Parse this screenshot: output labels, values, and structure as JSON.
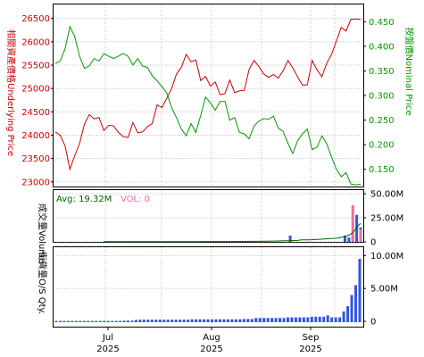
{
  "chart_data": [
    {
      "panel": "price",
      "type": "line",
      "y_left_label": "相關資產價格Underlying Price",
      "y_right_label": "按盤價Nominal Price",
      "y_left_ticks": [
        "26500",
        "26000",
        "25500",
        "25000",
        "24500",
        "24000",
        "23500",
        "23000"
      ],
      "y_right_ticks": [
        "0.450",
        "0.400",
        "0.350",
        "0.300",
        "0.250",
        "0.200",
        "0.150"
      ],
      "y_left_range": [
        22900,
        26800
      ],
      "y_right_range": [
        0.115,
        0.485
      ],
      "grid": true,
      "series": [
        {
          "color": "#cc0000",
          "axis": "left",
          "values": [
            24070,
            24000,
            23770,
            23270,
            23560,
            23820,
            24240,
            24440,
            24350,
            24380,
            24100,
            24210,
            24200,
            24060,
            23970,
            23950,
            24270,
            24050,
            24070,
            24180,
            24250,
            24650,
            24590,
            24790,
            25000,
            25310,
            25450,
            25730,
            25570,
            25610,
            25170,
            25260,
            25050,
            25140,
            24870,
            24890,
            25180,
            24910,
            24950,
            24960,
            25410,
            25600,
            25470,
            25310,
            25240,
            25300,
            25220,
            25380,
            25600,
            25440,
            25250,
            25070,
            25080,
            25600,
            25400,
            25250,
            25540,
            25730,
            26020,
            26310,
            26230,
            26480,
            26490,
            26480
          ]
        },
        {
          "color": "#009900",
          "axis": "right",
          "values": [
            0.365,
            0.37,
            0.395,
            0.44,
            0.42,
            0.38,
            0.355,
            0.36,
            0.375,
            0.37,
            0.385,
            0.38,
            0.375,
            0.38,
            0.385,
            0.38,
            0.362,
            0.375,
            0.36,
            0.357,
            0.34,
            0.33,
            0.318,
            0.305,
            0.275,
            0.255,
            0.232,
            0.218,
            0.243,
            0.225,
            0.26,
            0.297,
            0.285,
            0.27,
            0.288,
            0.288,
            0.25,
            0.255,
            0.225,
            0.222,
            0.212,
            0.238,
            0.248,
            0.253,
            0.252,
            0.258,
            0.234,
            0.227,
            0.203,
            0.182,
            0.208,
            0.222,
            0.232,
            0.19,
            0.195,
            0.218,
            0.202,
            0.175,
            0.15,
            0.135,
            0.143,
            0.12,
            0.118,
            0.12
          ]
        }
      ]
    },
    {
      "panel": "volume",
      "type": "bar",
      "y_right_label": "成交量Volume",
      "y_ticks": [
        "50.00M",
        "25.00M",
        "0"
      ],
      "y_range": [
        0,
        50
      ],
      "avg_label": "Avg: 19.32M",
      "vol_label": "VOL: 0",
      "avg_color": "#006600",
      "vol_color": "#ff66aa",
      "bars_blue": [
        0,
        0,
        0,
        0,
        0,
        0,
        0,
        0,
        0,
        0,
        0,
        0,
        0,
        0,
        0,
        0,
        0,
        0,
        0,
        0,
        0,
        0,
        0,
        0,
        0,
        0,
        0,
        0,
        0,
        0,
        0,
        0,
        0,
        0,
        0,
        0,
        0,
        0,
        0,
        0,
        0,
        0,
        0,
        0,
        0,
        0,
        0,
        0,
        0,
        0,
        0,
        0,
        0,
        0,
        0,
        0,
        0,
        0,
        0,
        0,
        6.5,
        0,
        0,
        0,
        0,
        0,
        0,
        0,
        0,
        0,
        0,
        0,
        0,
        0,
        6.5,
        4.5,
        6,
        28,
        15
      ],
      "bars_pink": [
        0,
        0,
        0,
        0,
        0,
        0,
        0,
        0,
        0,
        0,
        0,
        0,
        0,
        0,
        0,
        0,
        0,
        0,
        0,
        0,
        0,
        0,
        0,
        0,
        0,
        0,
        0,
        0,
        0,
        0,
        0,
        0,
        0,
        0,
        0,
        0,
        0,
        0,
        0,
        0,
        0,
        0,
        0,
        0,
        0,
        0,
        0,
        0,
        0,
        0,
        0,
        0,
        0,
        0,
        0,
        0,
        0,
        0,
        0,
        0,
        0,
        0,
        0,
        0,
        0,
        0,
        0,
        0,
        0,
        0,
        0,
        0,
        0,
        0,
        0,
        0,
        38,
        0,
        13
      ],
      "avg_line": [
        0.3,
        0.3,
        0.3,
        0.3,
        0.3,
        0.3,
        0.3,
        0.3,
        0.3,
        0.3,
        0.3,
        0.3,
        0.3,
        0.3,
        0.3,
        0.3,
        0.3,
        0.3,
        0.3,
        0.3,
        0.3,
        0.3,
        0.3,
        0.3,
        0.3,
        0.3,
        0.3,
        0.3,
        0.3,
        0.3,
        0.4,
        0.4,
        0.4,
        0.4,
        0.4,
        0.4,
        0.4,
        0.4,
        0.4,
        0.5,
        0.5,
        0.5,
        0.5,
        0.5,
        0.5,
        0.6,
        0.6,
        0.6,
        0.7,
        0.7,
        0.7,
        0.8,
        0.8,
        0.9,
        1.0,
        1.1,
        1.2,
        1.3,
        1.4,
        1.5,
        2.0,
        2.0,
        2.1,
        2.2,
        2.4,
        2.6,
        2.8,
        3.0,
        3.2,
        3.4,
        3.6,
        4.0,
        4.5,
        5.5,
        6.5,
        8,
        11,
        16,
        19.3
      ]
    },
    {
      "panel": "os_qty",
      "type": "bar",
      "y_right_label": "街貨量O/S Qty.",
      "y_ticks": [
        "10.00M",
        "5.00M",
        "0"
      ],
      "y_range": [
        0,
        11
      ],
      "values": [
        0.05,
        0.05,
        0.05,
        0.05,
        0.05,
        0.05,
        0.05,
        0.05,
        0.05,
        0.05,
        0.05,
        0.05,
        0.05,
        0.05,
        0.05,
        0.05,
        0.05,
        0.1,
        0.1,
        0.1,
        0.2,
        0.25,
        0.25,
        0.25,
        0.25,
        0.25,
        0.25,
        0.25,
        0.25,
        0.25,
        0.25,
        0.25,
        0.25,
        0.25,
        0.3,
        0.3,
        0.3,
        0.3,
        0.3,
        0.3,
        0.3,
        0.3,
        0.3,
        0.3,
        0.3,
        0.3,
        0.3,
        0.35,
        0.35,
        0.35,
        0.5,
        0.5,
        0.5,
        0.5,
        0.5,
        0.5,
        0.5,
        0.5,
        0.6,
        0.6,
        0.6,
        0.6,
        0.6,
        0.6,
        0.7,
        0.7,
        0.7,
        0.7,
        0.9,
        0.6,
        0.6,
        0.6,
        1.5,
        2.3,
        4.0,
        5.5,
        9.5
      ]
    },
    {
      "panel": "x_axis",
      "months": [
        {
          "label": "Jul",
          "year": "2025"
        },
        {
          "label": "Aug",
          "year": "2025"
        },
        {
          "label": "Sep",
          "year": "2025"
        }
      ]
    }
  ]
}
